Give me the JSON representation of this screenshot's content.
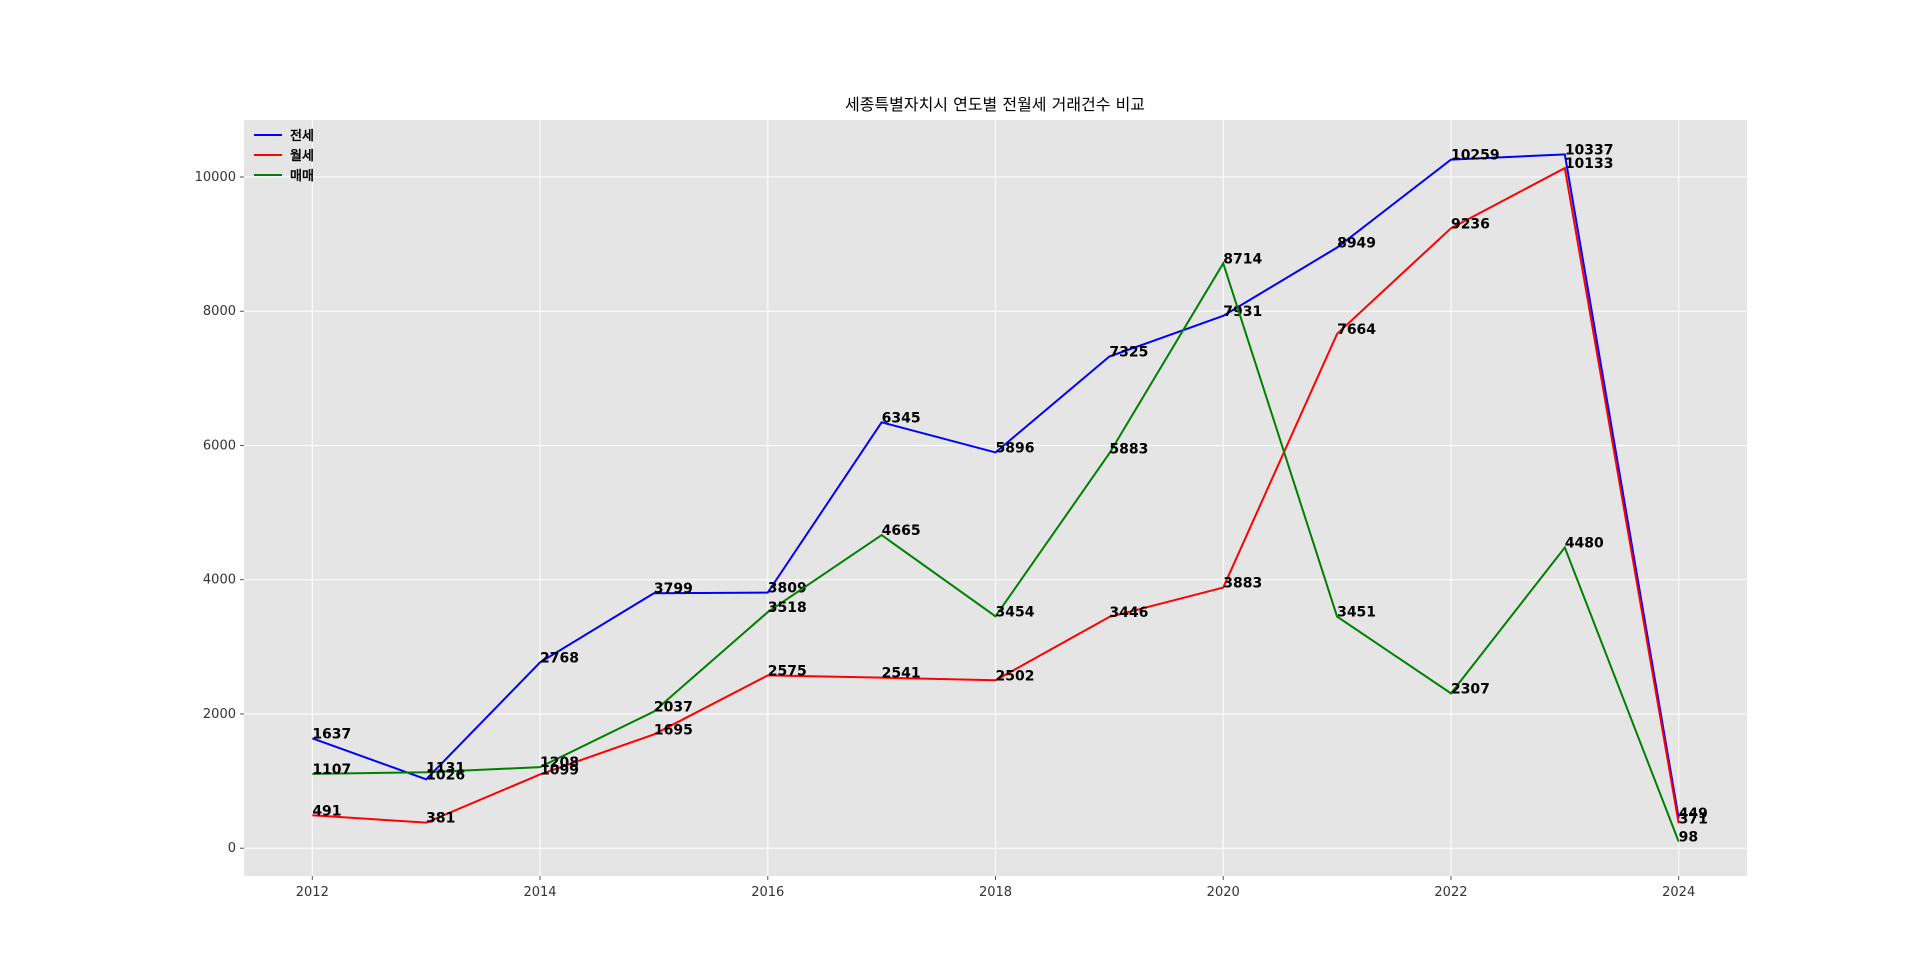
{
  "chart_data": {
    "type": "line",
    "title": "세종특별자치시 연도별 전월세 거래건수 비교",
    "x": [
      2012,
      2013,
      2014,
      2015,
      2016,
      2017,
      2018,
      2019,
      2020,
      2021,
      2022,
      2023,
      2024
    ],
    "series": [
      {
        "name": "전세",
        "color": "#0000ff",
        "values": [
          1637,
          1026,
          2768,
          3799,
          3809,
          6345,
          5896,
          7325,
          7931,
          8949,
          10259,
          10337,
          449
        ]
      },
      {
        "name": "월세",
        "color": "#ff0000",
        "values": [
          491,
          381,
          1099,
          1695,
          2575,
          2541,
          2502,
          3446,
          3883,
          7664,
          9236,
          10133,
          371
        ]
      },
      {
        "name": "매매",
        "color": "#008000",
        "values": [
          1107,
          1131,
          1208,
          2037,
          3518,
          4665,
          3454,
          5883,
          8714,
          3451,
          2307,
          4480,
          98
        ]
      }
    ],
    "xlim": [
      2011.4,
      2024.6
    ],
    "xticks": [
      2012,
      2014,
      2016,
      2018,
      2020,
      2022,
      2024
    ],
    "ylim": [
      -414,
      10849
    ],
    "yticks": [
      0,
      2000,
      4000,
      6000,
      8000,
      10000
    ],
    "grid": true,
    "legend": "upper left"
  }
}
